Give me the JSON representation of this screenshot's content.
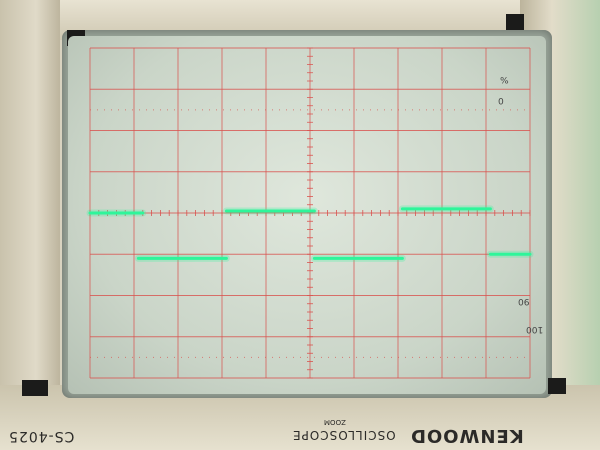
{
  "device": {
    "brand": "KENWOOD",
    "product": "OSCILLOSCOPE",
    "product_sub": "ZOOM",
    "model": "CS-4025"
  },
  "graticule": {
    "scale_top": "%",
    "scale_top2": "0",
    "scale_bottom": "90",
    "scale_bottom2": "100"
  },
  "chart_data": {
    "type": "line",
    "title": "",
    "xlabel": "",
    "ylabel": "",
    "x_divisions": 10,
    "y_divisions": 8,
    "xlim": [
      0,
      10
    ],
    "ylim": [
      -4,
      4
    ],
    "grid": true,
    "series": [
      {
        "color": "#2ef59a",
        "segments": [
          {
            "x": [
              0.0,
              1.2
            ],
            "y": [
              0.0,
              0.0
            ]
          },
          {
            "x": [
              1.1,
              3.1
            ],
            "y": [
              -1.1,
              -1.1
            ]
          },
          {
            "x": [
              3.1,
              5.1
            ],
            "y": [
              0.05,
              0.05
            ]
          },
          {
            "x": [
              5.1,
              7.1
            ],
            "y": [
              -1.1,
              -1.1
            ]
          },
          {
            "x": [
              7.1,
              9.1
            ],
            "y": [
              0.1,
              0.1
            ]
          },
          {
            "x": [
              9.1,
              10.0
            ],
            "y": [
              -1.0,
              -1.0
            ]
          }
        ]
      }
    ]
  }
}
